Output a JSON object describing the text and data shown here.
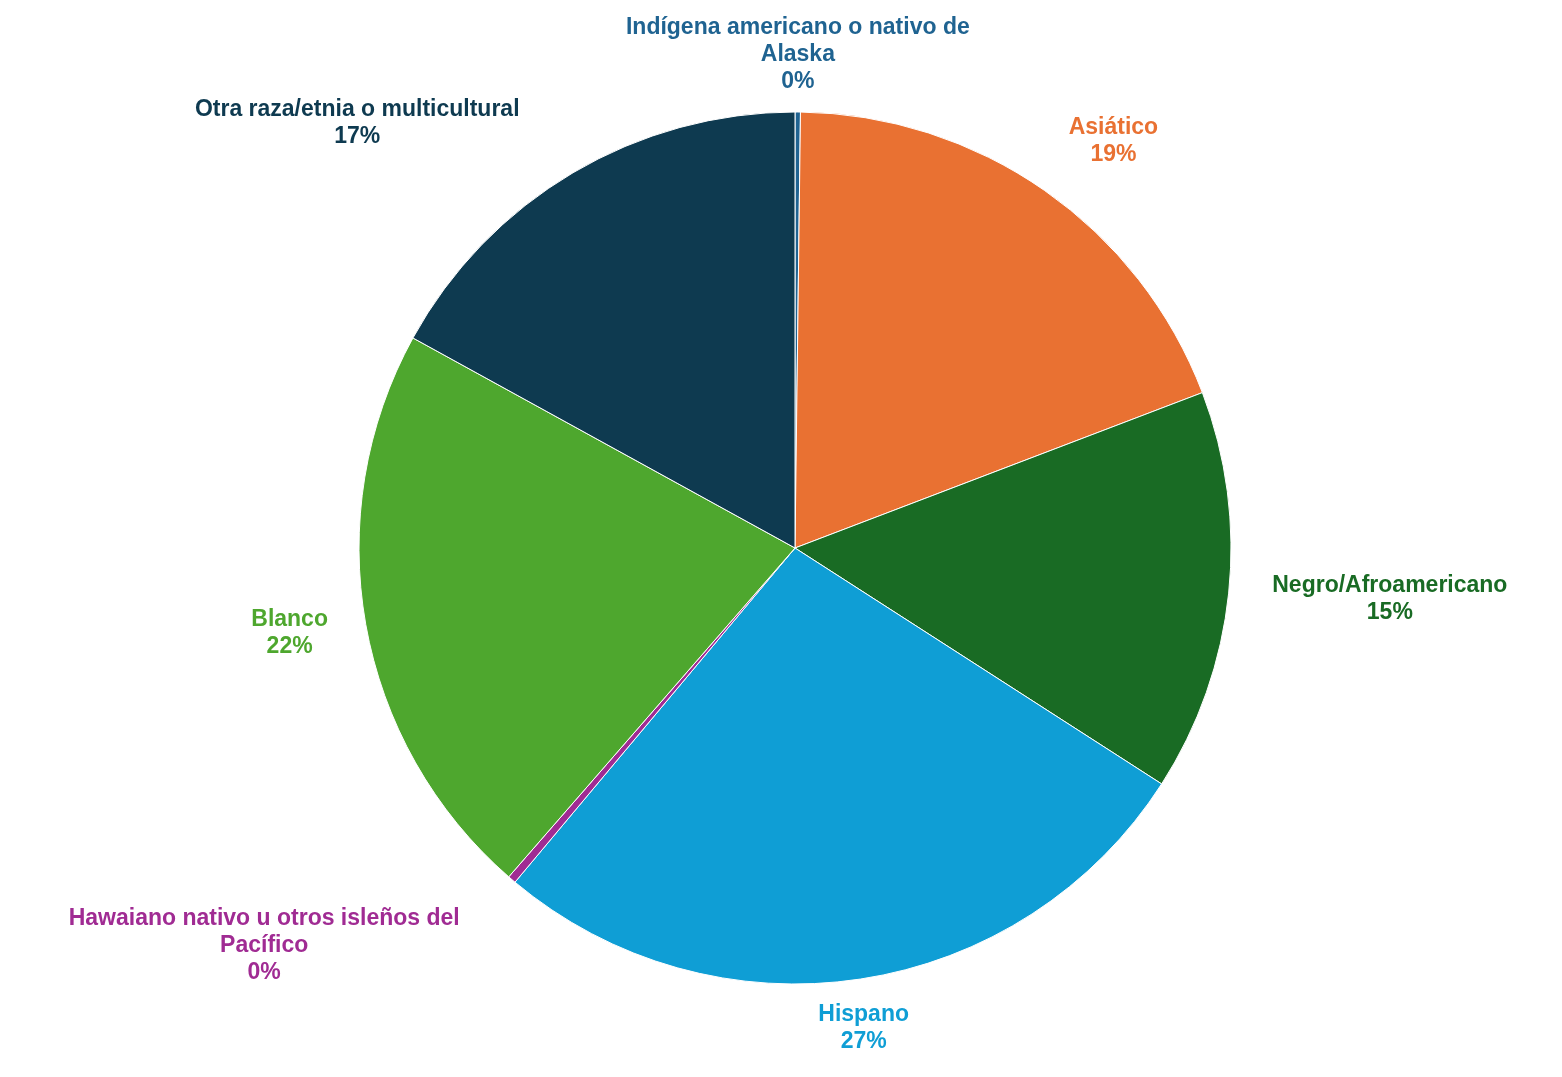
{
  "chart_data": {
    "type": "pie",
    "categories": [
      "Indígena americano o nativo de Alaska",
      "Asiático",
      "Negro/Afroamericano",
      "Hispano",
      "Hawaiano nativo u otros isleños del Pacífico",
      "Blanco",
      "Otra raza/etnia o multicultural"
    ],
    "values": [
      0.2,
      19,
      14.9,
      27,
      0.3,
      21.6,
      17
    ],
    "colors": [
      "#1f6391",
      "#e97132",
      "#196b24",
      "#0f9ed5",
      "#a02b93",
      "#4ea72e",
      "#0e3a50"
    ],
    "value_labels": [
      "0%",
      "19%",
      "15%",
      "27%",
      "0%",
      "22%",
      "17%"
    ]
  }
}
